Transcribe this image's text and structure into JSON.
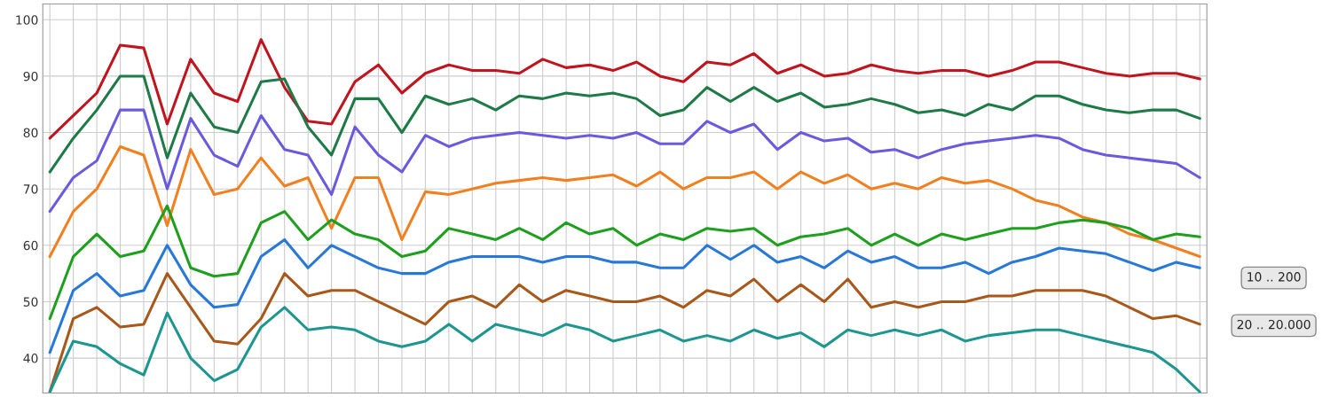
{
  "chart_data": {
    "type": "line",
    "categories": [
      null,
      null,
      null,
      null,
      null,
      null,
      null,
      null,
      null,
      null,
      null,
      null,
      null,
      null,
      null,
      null,
      null,
      null,
      null,
      null,
      null,
      null,
      null,
      null,
      null,
      null,
      null,
      null,
      null,
      null,
      null,
      null,
      null,
      null,
      null,
      null,
      null,
      null,
      null,
      null,
      null,
      null,
      null,
      null,
      null,
      null,
      null,
      null,
      null,
      null
    ],
    "series": [
      {
        "color": "#c0141e",
        "values": [
          79,
          83,
          87,
          95.5,
          95,
          81.5,
          93,
          87,
          85.5,
          96.5,
          88,
          82,
          81.5,
          89,
          92,
          87,
          90.5,
          92,
          91,
          91,
          90.5,
          93,
          91.5,
          92,
          91,
          92.5,
          90,
          89,
          92.5,
          92,
          94,
          90.5,
          92,
          90,
          90.5,
          92,
          91,
          90.5,
          91,
          91,
          90,
          91,
          92.5,
          92.5,
          91.5,
          90.5,
          90,
          90.5,
          90.5,
          89.5
        ]
      },
      {
        "color": "#1e7a46",
        "values": [
          73,
          79,
          84,
          90,
          90,
          75.5,
          87,
          81,
          80,
          89,
          89.5,
          81,
          76,
          86,
          86,
          80,
          86.5,
          85,
          86,
          84,
          86.5,
          86,
          87,
          86.5,
          87,
          86,
          83,
          84,
          88,
          85.5,
          88,
          85.5,
          87,
          84.5,
          85,
          86,
          85,
          83.5,
          84,
          83,
          85,
          84,
          86.5,
          86.5,
          85,
          84,
          83.5,
          84,
          84,
          82.5
        ]
      },
      {
        "color": "#6a5ade",
        "values": [
          66,
          72,
          75,
          84,
          84,
          70,
          82.5,
          76,
          74,
          83,
          77,
          76,
          69,
          81,
          76,
          73,
          79.5,
          77.5,
          79,
          79.5,
          80,
          79.5,
          79,
          79.5,
          79,
          80,
          78,
          78,
          82,
          80,
          81.5,
          77,
          80,
          78.5,
          79,
          76.5,
          77,
          75.5,
          77,
          78,
          78.5,
          79,
          79.5,
          79,
          77,
          76,
          75.5,
          75,
          74.5,
          72
        ]
      },
      {
        "color": "#f08020",
        "values": [
          58,
          66,
          70,
          77.5,
          76,
          63.5,
          77,
          69,
          70,
          75.5,
          70.5,
          72,
          63,
          72,
          72,
          61,
          69.5,
          69,
          70,
          71,
          71.5,
          72,
          71.5,
          72,
          72.5,
          70.5,
          73,
          70,
          72,
          72,
          73,
          70,
          73,
          71,
          72.5,
          70,
          71,
          70,
          72,
          71,
          71.5,
          70,
          68,
          67,
          65,
          64,
          62,
          61,
          59.5,
          58
        ]
      },
      {
        "color": "#1ea01e",
        "values": [
          47,
          58,
          62,
          58,
          59,
          67,
          56,
          54.5,
          55,
          64,
          66,
          61,
          64.5,
          62,
          61,
          58,
          59,
          63,
          62,
          61,
          63,
          61,
          64,
          62,
          63,
          60,
          62,
          61,
          63,
          62.5,
          63,
          60,
          61.5,
          62,
          63,
          60,
          62,
          60,
          62,
          61,
          62,
          63,
          63,
          64,
          64.5,
          64,
          63,
          61,
          62,
          61.5
        ]
      },
      {
        "color": "#2878d8",
        "values": [
          41,
          52,
          55,
          51,
          52,
          60,
          53,
          49,
          49.5,
          58,
          61,
          56,
          60,
          58,
          56,
          55,
          55,
          57,
          58,
          58,
          58,
          57,
          58,
          58,
          57,
          57,
          56,
          56,
          60,
          57.5,
          60,
          57,
          58,
          56,
          59,
          57,
          58,
          56,
          56,
          57,
          55,
          57,
          58,
          59.5,
          59,
          58.5,
          57,
          55.5,
          57,
          56
        ]
      },
      {
        "color": "#a8581a",
        "values": [
          34,
          47,
          49,
          45.5,
          46,
          55,
          49,
          43,
          42.5,
          47,
          55,
          51,
          52,
          52,
          50,
          48,
          46,
          50,
          51,
          49,
          53,
          50,
          52,
          51,
          50,
          50,
          51,
          49,
          52,
          51,
          54,
          50,
          53,
          50,
          54,
          49,
          50,
          49,
          50,
          50,
          51,
          51,
          52,
          52,
          52,
          51,
          49,
          47,
          47.5,
          46
        ]
      },
      {
        "color": "#1e9690",
        "values": [
          34,
          43,
          42,
          39,
          37,
          48,
          40,
          36,
          38,
          45.5,
          49,
          45,
          45.5,
          45,
          43,
          42,
          43,
          46,
          43,
          46,
          45,
          44,
          46,
          45,
          43,
          44,
          45,
          43,
          44,
          43,
          45,
          43.5,
          44.5,
          42,
          45,
          44,
          45,
          44,
          45,
          43,
          44,
          44.5,
          45,
          45,
          44,
          43,
          42,
          41,
          38,
          34
        ]
      }
    ],
    "ylim": [
      33.8,
      102.8
    ],
    "yticks": [
      40,
      50,
      60,
      70,
      80,
      90,
      100
    ],
    "grid": true,
    "tick_labels": "y",
    "line_style": "solid",
    "marker": "none",
    "annotations": [
      "10 .. 200",
      "20 .. 20.000"
    ]
  }
}
